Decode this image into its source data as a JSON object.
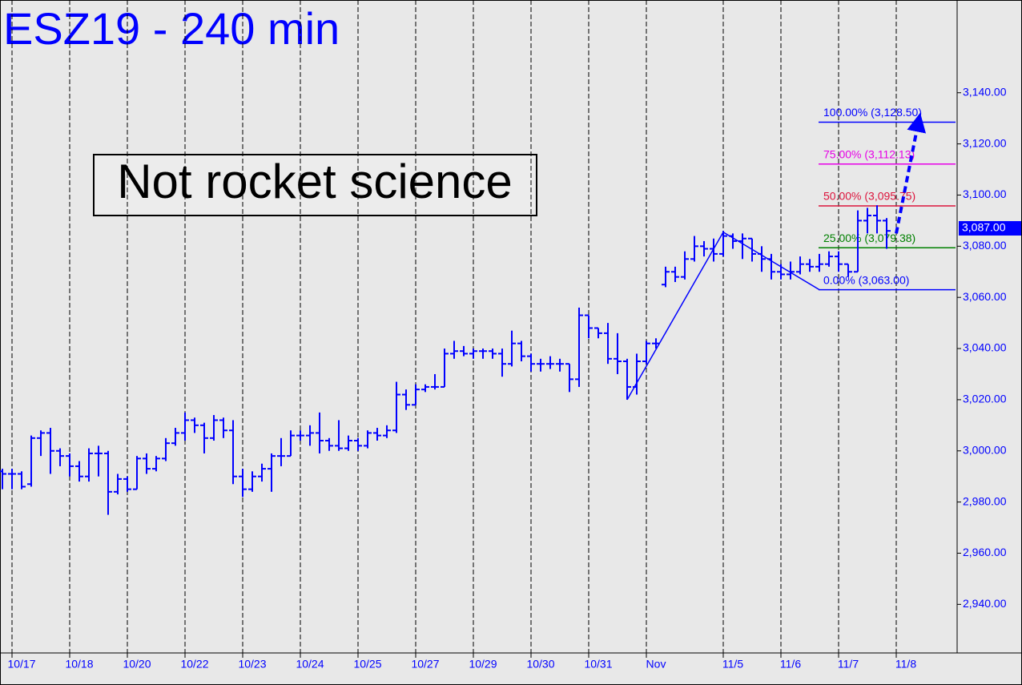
{
  "chart_data": {
    "type": "ohlc",
    "title": "ESZ19 - 240 min",
    "annotation": "Not rocket science",
    "color": "#0000ff",
    "categories": [
      null,
      "10/17",
      null,
      null,
      null,
      null,
      null,
      "10/18",
      null,
      null,
      null,
      null,
      null,
      "10/20",
      null,
      null,
      null,
      null,
      null,
      "10/22",
      null,
      null,
      null,
      null,
      null,
      "10/23",
      null,
      null,
      null,
      null,
      null,
      "10/24",
      null,
      null,
      null,
      null,
      null,
      "10/25",
      null,
      null,
      null,
      null,
      null,
      "10/27",
      null,
      null,
      null,
      null,
      null,
      "10/29",
      null,
      null,
      null,
      null,
      null,
      "10/30",
      null,
      null,
      null,
      null,
      null,
      "10/31",
      null,
      null,
      null,
      null,
      null,
      "Nov",
      null,
      null,
      null,
      null,
      null,
      null,
      null,
      "11/5",
      null,
      null,
      null,
      null,
      null,
      "11/6",
      null,
      null,
      null,
      null,
      null,
      "11/7",
      null,
      null,
      null,
      null,
      null,
      "11/8",
      null,
      null,
      null,
      null,
      null
    ],
    "open": [
      2992,
      2991,
      2991,
      2987,
      3005,
      3007,
      3000,
      2998,
      2994,
      2990,
      2999,
      2999,
      2984,
      2989,
      2985,
      2997,
      2993,
      2997,
      3003,
      3007,
      3012,
      3010,
      3005,
      3012,
      3008,
      2990,
      2985,
      2990,
      2993,
      2998,
      2998,
      3006,
      3006,
      3007,
      3004,
      3002,
      3001,
      3004,
      3002,
      3007,
      3006,
      3008,
      3022,
      3018,
      3024,
      3025,
      3025,
      3038,
      3039,
      3038,
      3039,
      3039,
      3038,
      3034,
      3042,
      3037,
      3034,
      3034,
      3034,
      3034,
      3028,
      3053,
      3048,
      3046,
      3036,
      3035,
      3025,
      3035,
      3042,
      3065,
      3070,
      3068,
      3075,
      3080,
      3079,
      3077,
      3084,
      3082,
      3083,
      3077,
      3075,
      3070,
      3069,
      3070,
      3073,
      3072,
      3073,
      3076,
      3073,
      3070,
      3090,
      3092,
      3090,
      null,
      null,
      null,
      null,
      null,
      null
    ],
    "high": [
      2993,
      2993,
      2992,
      3006,
      3008,
      3009,
      3001,
      2999,
      2996,
      3001,
      3002,
      3000,
      2991,
      2990,
      2998,
      2999,
      2998,
      3005,
      3009,
      3015,
      3013,
      3011,
      3014,
      3013,
      3012,
      2993,
      2992,
      2995,
      2999,
      3005,
      3008,
      3008,
      3010,
      3015,
      3005,
      3012,
      3006,
      3005,
      3008,
      3009,
      3010,
      3027,
      3024,
      3026,
      3026,
      3030,
      3040,
      3043,
      3041,
      3040,
      3040,
      3040,
      3040,
      3047,
      3043,
      3038,
      3036,
      3037,
      3036,
      3034,
      3056,
      3053,
      3048,
      3050,
      3046,
      3036,
      3038,
      3043,
      3044,
      3072,
      3072,
      3078,
      3084,
      3082,
      3083,
      3086,
      3085,
      3085,
      3083,
      3080,
      3077,
      3073,
      3074,
      3076,
      3075,
      3077,
      3078,
      3078,
      3073,
      3094,
      3095,
      3096,
      3091,
      null,
      null,
      null,
      null,
      null,
      null
    ],
    "low": [
      2985,
      2985,
      2985,
      2986,
      2998,
      2991,
      2994,
      2990,
      2988,
      2988,
      2990,
      2975,
      2983,
      2984,
      2985,
      2991,
      2992,
      2996,
      3002,
      3004,
      3007,
      2999,
      3004,
      3005,
      2987,
      2982,
      2984,
      2988,
      2984,
      2994,
      2998,
      3004,
      3002,
      2999,
      3000,
      3000,
      3000,
      3000,
      3001,
      3004,
      3005,
      3007,
      3016,
      3018,
      3023,
      3024,
      3025,
      3036,
      3037,
      3036,
      3036,
      3036,
      3029,
      3033,
      3035,
      3031,
      3031,
      3032,
      3031,
      3023,
      3025,
      3044,
      3044,
      3034,
      3030,
      3020,
      3022,
      3034,
      3040,
      3064,
      3066,
      3067,
      3074,
      3076,
      3074,
      3076,
      3079,
      3075,
      3074,
      3070,
      3067,
      3067,
      3067,
      3069,
      3070,
      3070,
      3072,
      3070,
      3068,
      3070,
      3085,
      3085,
      3079,
      null,
      null,
      null,
      null,
      null,
      null
    ],
    "close": [
      2991,
      2991,
      2986,
      3005,
      3007,
      3000,
      2998,
      2994,
      2990,
      2999,
      2999,
      2984,
      2989,
      2985,
      2997,
      2993,
      2997,
      3003,
      3007,
      3012,
      3010,
      3005,
      3012,
      3008,
      2990,
      2985,
      2990,
      2993,
      2998,
      2998,
      3006,
      3006,
      3007,
      3004,
      3002,
      3001,
      3004,
      3002,
      3007,
      3006,
      3008,
      3022,
      3018,
      3024,
      3025,
      3025,
      3038,
      3039,
      3038,
      3039,
      3039,
      3038,
      3034,
      3042,
      3037,
      3034,
      3034,
      3034,
      3034,
      3028,
      3053,
      3048,
      3046,
      3036,
      3035,
      3025,
      3035,
      3042,
      3042,
      3070,
      3068,
      3075,
      3080,
      3079,
      3077,
      3084,
      3082,
      3083,
      3077,
      3075,
      3070,
      3069,
      3070,
      3073,
      3072,
      3073,
      3076,
      3073,
      3070,
      3090,
      3092,
      3090,
      3086,
      null,
      null,
      null,
      null,
      null,
      null
    ],
    "ylim": [
      2921,
      3175
    ],
    "yticks": [
      {
        "value": 2940,
        "label": "2,940.00"
      },
      {
        "value": 2960,
        "label": "2,960.00"
      },
      {
        "value": 2980,
        "label": "2,980.00"
      },
      {
        "value": 3000,
        "label": "3,000.00"
      },
      {
        "value": 3020,
        "label": "3,020.00"
      },
      {
        "value": 3040,
        "label": "3,040.00"
      },
      {
        "value": 3060,
        "label": "3,060.00"
      },
      {
        "value": 3080,
        "label": "3,080.00"
      },
      {
        "value": 3100,
        "label": "3,100.00"
      },
      {
        "value": 3120,
        "label": "3,120.00"
      },
      {
        "value": 3140,
        "label": "3,140.00"
      }
    ],
    "levels": [
      {
        "label": "100.00% (3,128.50)",
        "value": 3128.5,
        "color": "#0000ff"
      },
      {
        "label": "75.00% (3,112.13)",
        "value": 3112.13,
        "color": "#e600e6"
      },
      {
        "label": "50.00% (3,095.75)",
        "value": 3095.75,
        "color": "#dc143c"
      },
      {
        "label": "25.00% (3,079.38)",
        "value": 3079.38,
        "color": "#008000"
      },
      {
        "label": "0.00% (3,063.00)",
        "value": 3063,
        "color": "#0000ff"
      }
    ],
    "pattern": {
      "x": [
        65,
        75,
        85
      ],
      "y": [
        3020,
        3085.5,
        3063
      ]
    },
    "projection": {
      "x": [
        93,
        95.3
      ],
      "y": [
        3085,
        3128.5
      ]
    },
    "last": {
      "value": 3087,
      "label": "3,087.00"
    }
  }
}
